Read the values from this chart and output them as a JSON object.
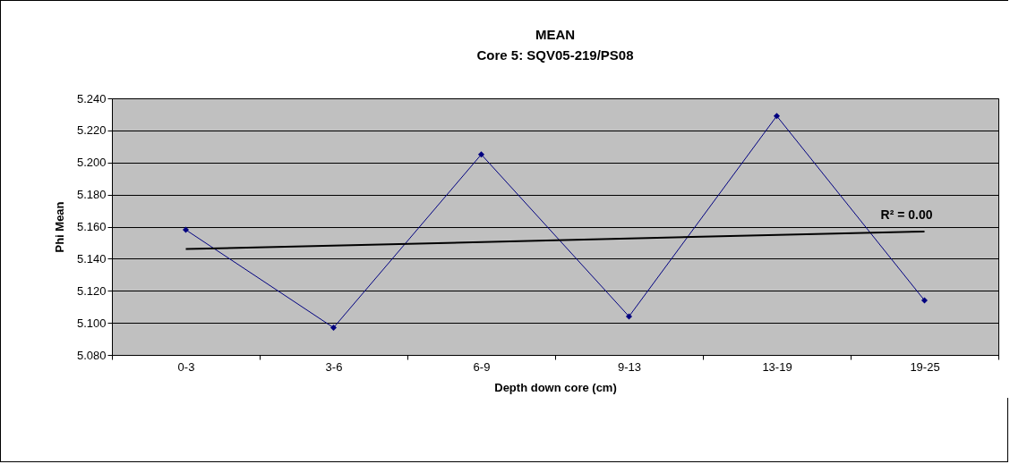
{
  "chart_data": {
    "type": "line",
    "title": "MEAN",
    "subtitle": "Core 5: SQV05-219/PS08",
    "xlabel": "Depth down core (cm)",
    "ylabel": "Phi Mean",
    "categories": [
      "0-3",
      "3-6",
      "6-9",
      "9-13",
      "13-19",
      "19-25"
    ],
    "series": [
      {
        "color": "#000080",
        "values": [
          5.158,
          5.097,
          5.205,
          5.104,
          5.229,
          5.114
        ],
        "marker": "diamond",
        "line_style": "solid"
      },
      {
        "type": "line",
        "color": "#000000",
        "x": [
          "0-3",
          "19-25"
        ],
        "values": [
          5.146,
          5.157
        ],
        "marker": "none",
        "line_style": "solid"
      }
    ],
    "annotations": [
      "R² = 0.00"
    ],
    "ylim": [
      5.08,
      5.24
    ],
    "yticks": [
      {
        "value": 5.08,
        "label": "5.080"
      },
      {
        "value": 5.1,
        "label": "5.100"
      },
      {
        "value": 5.12,
        "label": "5.120"
      },
      {
        "value": 5.14,
        "label": "5.140"
      },
      {
        "value": 5.16,
        "label": "5.160"
      },
      {
        "value": 5.18,
        "label": "5.180"
      },
      {
        "value": 5.2,
        "label": "5.200"
      },
      {
        "value": 5.22,
        "label": "5.220"
      },
      {
        "value": 5.24,
        "label": "5.240"
      }
    ],
    "grid": "y"
  }
}
